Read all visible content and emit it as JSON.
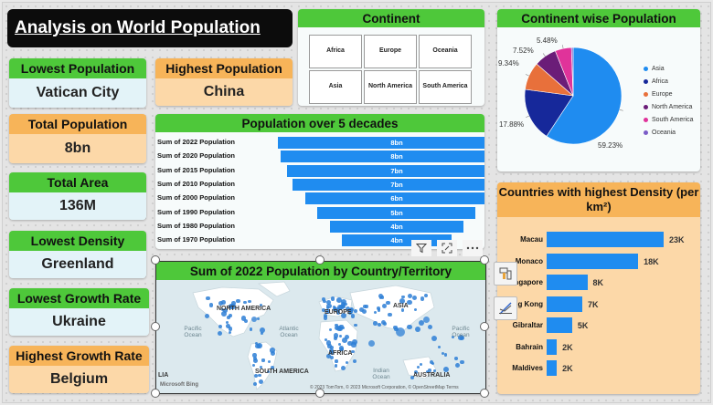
{
  "report": {
    "title": "Analysis on World Population"
  },
  "kpis": {
    "lowest_population": {
      "label": "Lowest Population",
      "value": "Vatican City"
    },
    "highest_population": {
      "label": "Highest Population",
      "value": "China"
    },
    "total_population": {
      "label": "Total Population",
      "value": "8bn"
    },
    "total_area": {
      "label": "Total Area",
      "value": "136M"
    },
    "lowest_density": {
      "label": "Lowest Density",
      "value": "Greenland"
    },
    "lowest_growth": {
      "label": "Lowest Growth Rate",
      "value": "Ukraine"
    },
    "highest_growth": {
      "label": "Highest Growth Rate",
      "value": "Belgium"
    }
  },
  "continent_slicer": {
    "title": "Continent",
    "options": [
      "Africa",
      "Europe",
      "Oceania",
      "Asia",
      "North America",
      "South America"
    ]
  },
  "funnel": {
    "title": "Population over 5 decades",
    "rows": [
      {
        "label": "Sum of 2022 Population",
        "value": "8bn",
        "amount": 7.95
      },
      {
        "label": "Sum of 2020 Population",
        "value": "8bn",
        "amount": 7.76
      },
      {
        "label": "Sum of 2015 Population",
        "value": "7bn",
        "amount": 7.35
      },
      {
        "label": "Sum of 2010 Population",
        "value": "7bn",
        "amount": 6.95
      },
      {
        "label": "Sum of 2000 Population",
        "value": "6bn",
        "amount": 6.12
      },
      {
        "label": "Sum of 1990 Population",
        "value": "5bn",
        "amount": 5.29
      },
      {
        "label": "Sum of 1980 Population",
        "value": "4bn",
        "amount": 4.44
      },
      {
        "label": "Sum of 1970 Population",
        "value": "4bn",
        "amount": 3.69
      }
    ]
  },
  "pie": {
    "title": "Continent wise Population",
    "slices": [
      {
        "name": "Asia",
        "value": 59.23,
        "label": "59.23%",
        "color": "#1f8cf0"
      },
      {
        "name": "Africa",
        "value": 17.88,
        "label": "17.88%",
        "color": "#16289a"
      },
      {
        "name": "Europe",
        "value": 9.34,
        "label": "9.34%",
        "color": "#e8703b"
      },
      {
        "name": "North America",
        "value": 7.52,
        "label": "7.52%",
        "color": "#6b1d78"
      },
      {
        "name": "South America",
        "value": 5.48,
        "label": "5.48%",
        "color": "#e0339a"
      },
      {
        "name": "Oceania",
        "value": 0.55,
        "label": "",
        "color": "#7b5cc7"
      }
    ]
  },
  "density": {
    "title": "Countries with highest Density (per km²)",
    "rows": [
      {
        "country": "Macau",
        "value": 23,
        "label": "23K"
      },
      {
        "country": "Monaco",
        "value": 18,
        "label": "18K"
      },
      {
        "country": "Singapore",
        "value": 8,
        "label": "8K"
      },
      {
        "country": "Hong Kong",
        "value": 7,
        "label": "7K"
      },
      {
        "country": "Gibraltar",
        "value": 5,
        "label": "5K"
      },
      {
        "country": "Bahrain",
        "value": 2,
        "label": "2K"
      },
      {
        "country": "Maldives",
        "value": 2,
        "label": "2K"
      }
    ]
  },
  "map": {
    "title": "Sum of 2022 Population by Country/Territory",
    "continents": [
      "NORTH AMERICA",
      "EUROPE",
      "ASIA",
      "AFRICA",
      "SOUTH AMERICA",
      "AUSTRALIA",
      "LIA"
    ],
    "oceans": [
      "Pacific Ocean",
      "Atlantic Ocean",
      "Pacific Ocean",
      "Indian Ocean"
    ],
    "brand": "Microsoft Bing",
    "credit": "© 2023 TomTom, © 2023 Microsoft Corporation, © OpenStreetMap  Terms"
  },
  "chart_data": [
    {
      "type": "pie",
      "title": "Continent wise Population",
      "categories": [
        "Asia",
        "Africa",
        "Europe",
        "North America",
        "South America",
        "Oceania"
      ],
      "values": [
        59.23,
        17.88,
        9.34,
        7.52,
        5.48,
        0.55
      ],
      "legend": "right"
    },
    {
      "type": "bar",
      "title": "Population over 5 decades",
      "categories": [
        "Sum of 2022 Population",
        "Sum of 2020 Population",
        "Sum of 2015 Population",
        "Sum of 2010 Population",
        "Sum of 2000 Population",
        "Sum of 1990 Population",
        "Sum of 1980 Population",
        "Sum of 1970 Population"
      ],
      "values": [
        7.95,
        7.76,
        7.35,
        6.95,
        6.12,
        5.29,
        4.44,
        3.69
      ],
      "data_labels": [
        "8bn",
        "8bn",
        "7bn",
        "7bn",
        "6bn",
        "5bn",
        "4bn",
        "4bn"
      ]
    },
    {
      "type": "bar",
      "title": "Countries with highest Density (per km²)",
      "categories": [
        "Macau",
        "Monaco",
        "Singapore",
        "Hong Kong",
        "Gibraltar",
        "Bahrain",
        "Maldives"
      ],
      "values": [
        23,
        18,
        8,
        7,
        5,
        2,
        2
      ],
      "data_labels": [
        "23K",
        "18K",
        "8K",
        "7K",
        "5K",
        "2K",
        "2K"
      ]
    }
  ]
}
